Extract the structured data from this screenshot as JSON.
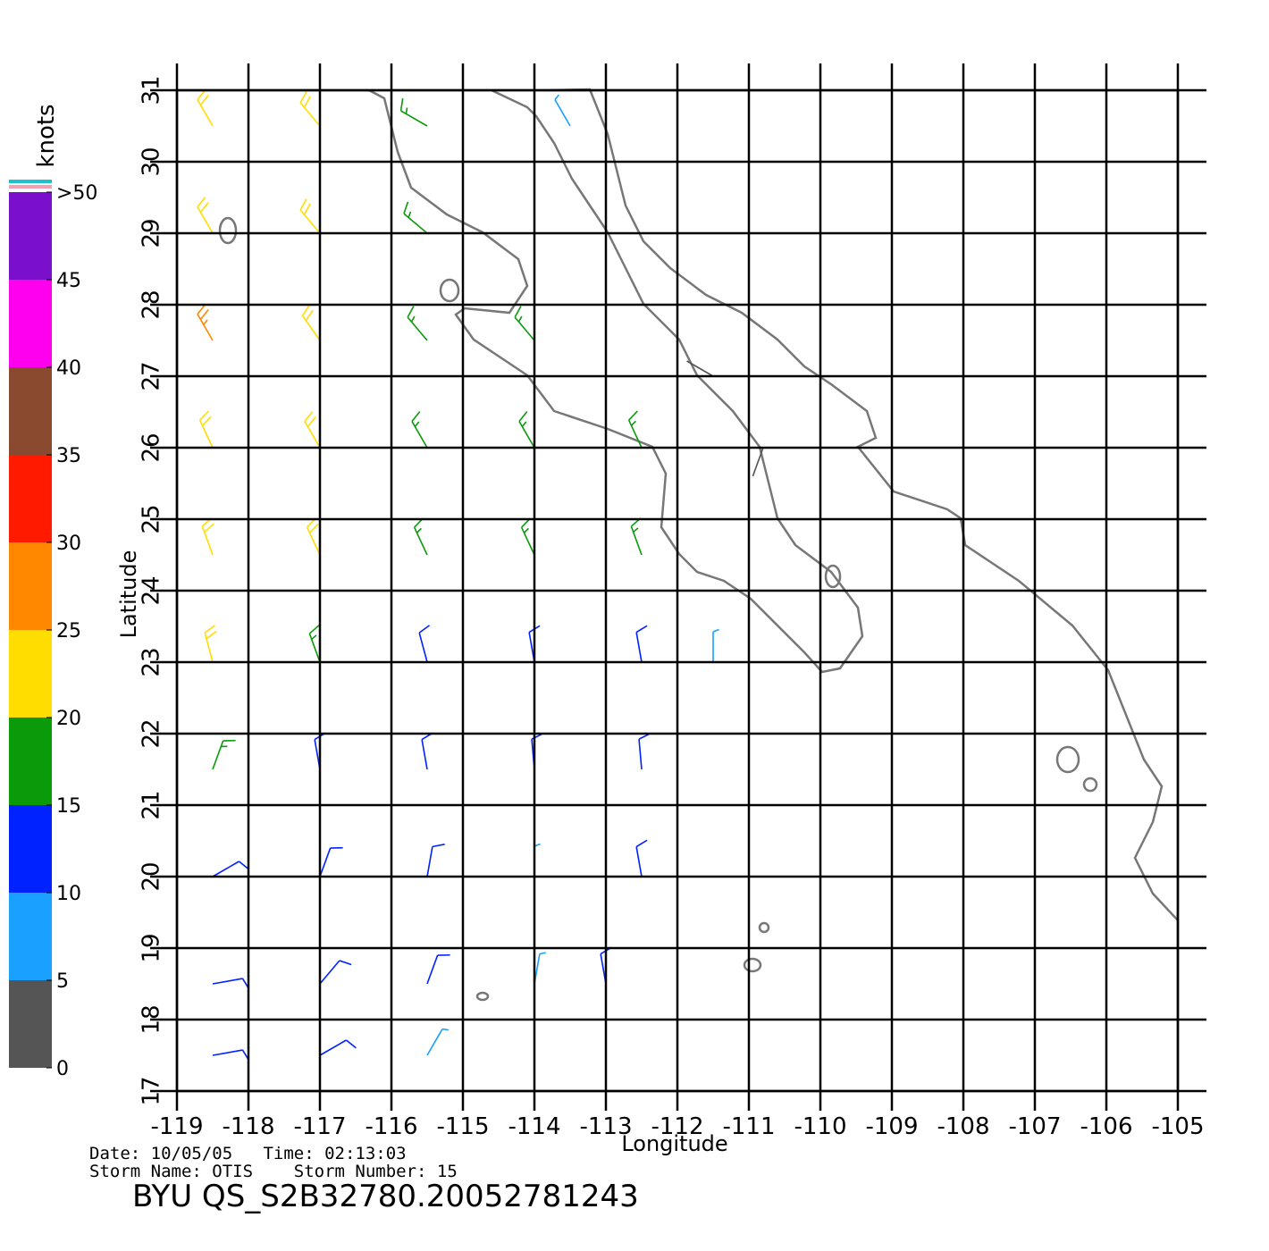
{
  "chart_data": {
    "type": "wind_barbs",
    "x_label": "Longitude",
    "y_label": "Latitude",
    "xlim": [
      -119,
      -105
    ],
    "ylim": [
      17,
      31
    ],
    "xticks": [
      -119,
      -118,
      -117,
      -116,
      -115,
      -114,
      -113,
      -112,
      -111,
      -110,
      -109,
      -108,
      -107,
      -106,
      -105
    ],
    "yticks": [
      17,
      18,
      19,
      20,
      21,
      22,
      23,
      24,
      25,
      26,
      27,
      28,
      29,
      30,
      31
    ],
    "grid": true,
    "samples": {
      "lon": [
        -118.5,
        -117,
        -115.5,
        -118.5,
        -117,
        -115.5,
        -118.5,
        -117,
        -115.5,
        -114,
        -118.5,
        -117,
        -115.5,
        -114,
        -112.5,
        -118.5,
        -117,
        -115.5,
        -114,
        -112.5,
        -118.5,
        -117,
        -115.5,
        -114,
        -112.5,
        -111.5,
        -118.5,
        -117,
        -115.5,
        -114,
        -112.5,
        -118.5,
        -117,
        -115.5,
        -114,
        -112.5,
        -118.5,
        -117,
        -115.5,
        -114,
        -113,
        -118.5,
        -117,
        -115.5,
        -113.5,
        -111.5,
        -110.8
      ],
      "lat": [
        30.5,
        30.5,
        30.5,
        29,
        29,
        29,
        27.5,
        27.5,
        27.5,
        27.5,
        26,
        26,
        26,
        26,
        26,
        24.5,
        24.5,
        24.5,
        24.5,
        24.5,
        23,
        23,
        23,
        23,
        23,
        23,
        21.5,
        21.5,
        21.5,
        21.5,
        21.5,
        20,
        20,
        20,
        20,
        20,
        18.5,
        18.5,
        18.5,
        18.5,
        18.5,
        17.5,
        17.5,
        17.5,
        30.5,
        27,
        26
      ],
      "speed": [
        22,
        20,
        16,
        24,
        21,
        17,
        25,
        21,
        18,
        16,
        24,
        20,
        18,
        17,
        17,
        23,
        20,
        17,
        16,
        18,
        21,
        18,
        14,
        13,
        11,
        8,
        16,
        13,
        12,
        11,
        10,
        14,
        12,
        10,
        9,
        10,
        13,
        12,
        10,
        9,
        12,
        12,
        11,
        9,
        7,
        4,
        4
      ],
      "direction": [
        330,
        320,
        300,
        330,
        320,
        310,
        330,
        325,
        320,
        320,
        335,
        330,
        330,
        330,
        335,
        340,
        335,
        335,
        335,
        340,
        345,
        340,
        345,
        350,
        350,
        0,
        20,
        350,
        350,
        355,
        355,
        60,
        20,
        10,
        0,
        350,
        80,
        40,
        20,
        10,
        350,
        80,
        60,
        30,
        330,
        300,
        200
      ]
    },
    "colorbar": {
      "label": "knots",
      "lim": [
        0,
        50
      ],
      "ticks": [
        0,
        5,
        10,
        15,
        20,
        25,
        30,
        35,
        40,
        45,
        {
          "value": 50,
          "label": ">50"
        }
      ],
      "colors": [
        "#555555",
        "#1aa0ff",
        "#0022ff",
        "#0a9a0a",
        "#ffdd00",
        "#ff8800",
        "#ff1a00",
        "#8a4a30",
        "#ff00ee",
        "#7a10cc"
      ]
    },
    "date_line": "Date: 10/05/05   Time: 02:13:03",
    "storm_line": "Storm Name: OTIS    Storm Number: 15",
    "footer": "BYU QS_S2B32780.20052781243"
  }
}
